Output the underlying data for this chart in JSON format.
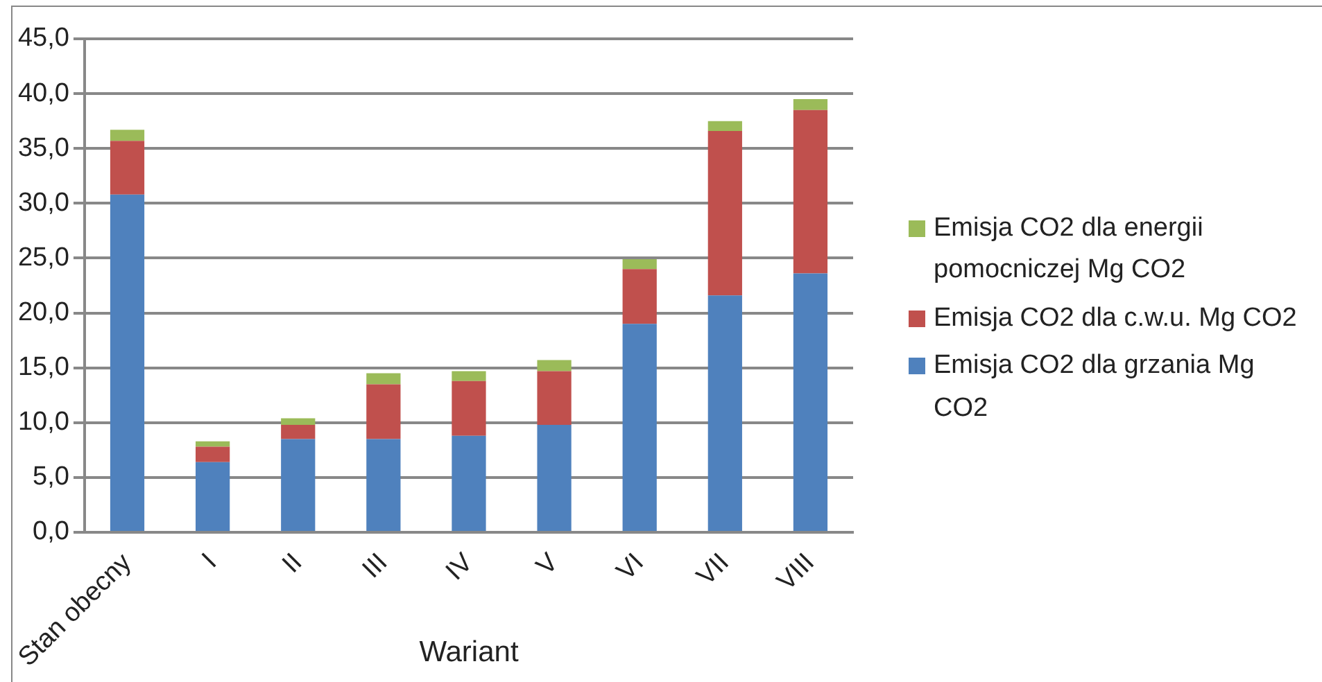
{
  "chart_data": {
    "type": "bar",
    "stacked": true,
    "xlabel": "Wariant",
    "categories": [
      "Stan obecny",
      "I",
      "II",
      "III",
      "IV",
      "V",
      "VI",
      "VII",
      "VIII"
    ],
    "series": [
      {
        "name": "Emisja CO2 dla grzania Mg CO2",
        "color": "#4f81bd",
        "values": [
          30.8,
          6.4,
          8.5,
          8.5,
          8.8,
          9.8,
          19.0,
          21.6,
          23.6
        ]
      },
      {
        "name": "Emisja CO2 dla c.w.u. Mg CO2",
        "color": "#c0504d",
        "values": [
          4.9,
          1.4,
          1.3,
          5.0,
          5.0,
          4.9,
          5.0,
          15.0,
          14.9
        ]
      },
      {
        "name": "Emisja CO2 dla energii pomocniczej Mg CO2",
        "color": "#9bbb59",
        "values": [
          1.0,
          0.5,
          0.6,
          1.0,
          0.9,
          1.0,
          0.9,
          0.9,
          1.0
        ]
      }
    ],
    "ylim": [
      0,
      45
    ],
    "yticks": [
      {
        "value": 0,
        "label": "0,0"
      },
      {
        "value": 5,
        "label": "5,0"
      },
      {
        "value": 10,
        "label": "10,0"
      },
      {
        "value": 15,
        "label": "15,0"
      },
      {
        "value": 20,
        "label": "20,0"
      },
      {
        "value": 25,
        "label": "25,0"
      },
      {
        "value": 30,
        "label": "30,0"
      },
      {
        "value": 35,
        "label": "35,0"
      },
      {
        "value": 40,
        "label": "40,0"
      },
      {
        "value": 45,
        "label": "45,0"
      }
    ],
    "grid": "y",
    "legend": "right"
  }
}
